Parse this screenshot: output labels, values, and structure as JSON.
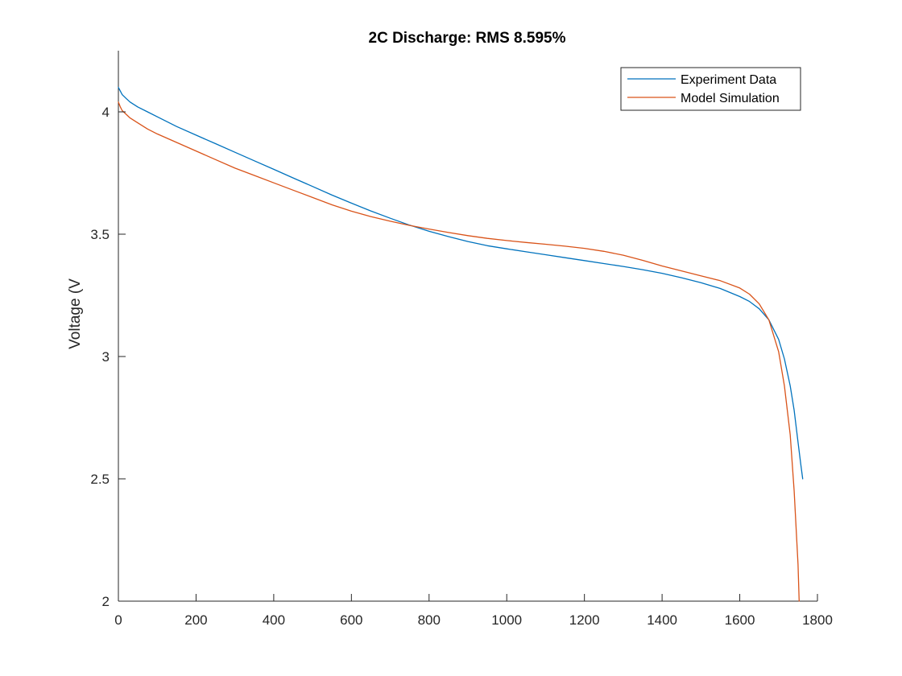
{
  "chart_data": {
    "type": "line",
    "title": "2C Discharge: RMS 8.595%",
    "xlabel": "",
    "ylabel": "Voltage (V",
    "xlim": [
      0,
      1800
    ],
    "ylim": [
      2,
      4.25
    ],
    "x_ticks": [
      0,
      200,
      400,
      600,
      800,
      1000,
      1200,
      1400,
      1600,
      1800
    ],
    "y_ticks": [
      2,
      2.5,
      3,
      3.5,
      4
    ],
    "x_tick_labels": [
      "0",
      "200",
      "400",
      "600",
      "800",
      "1000",
      "1200",
      "1400",
      "1600",
      "1800"
    ],
    "y_tick_labels": [
      "2",
      "2.5",
      "3",
      "3.5",
      "4"
    ],
    "grid": false,
    "legend_position": "top-right",
    "series": [
      {
        "name": "Experiment Data",
        "color": "#0072BD",
        "x": [
          0,
          5,
          10,
          20,
          30,
          50,
          75,
          100,
          150,
          200,
          250,
          300,
          350,
          400,
          450,
          500,
          550,
          600,
          650,
          700,
          750,
          800,
          850,
          900,
          950,
          1000,
          1050,
          1100,
          1150,
          1200,
          1250,
          1300,
          1350,
          1400,
          1450,
          1500,
          1550,
          1600,
          1625,
          1650,
          1675,
          1700,
          1715,
          1730,
          1740,
          1750,
          1757,
          1762
        ],
        "y": [
          4.1,
          4.085,
          4.07,
          4.055,
          4.04,
          4.02,
          4.0,
          3.98,
          3.94,
          3.905,
          3.87,
          3.835,
          3.8,
          3.765,
          3.73,
          3.695,
          3.66,
          3.627,
          3.595,
          3.565,
          3.537,
          3.512,
          3.49,
          3.47,
          3.453,
          3.44,
          3.428,
          3.416,
          3.404,
          3.392,
          3.38,
          3.368,
          3.355,
          3.34,
          3.322,
          3.302,
          3.278,
          3.245,
          3.225,
          3.195,
          3.15,
          3.07,
          2.99,
          2.88,
          2.78,
          2.65,
          2.56,
          2.5
        ]
      },
      {
        "name": "Model Simulation",
        "color": "#D95319",
        "x": [
          0,
          5,
          10,
          20,
          30,
          50,
          75,
          100,
          150,
          200,
          250,
          300,
          350,
          400,
          450,
          500,
          550,
          600,
          650,
          700,
          750,
          800,
          850,
          900,
          950,
          1000,
          1050,
          1100,
          1150,
          1200,
          1250,
          1300,
          1350,
          1400,
          1450,
          1500,
          1550,
          1600,
          1625,
          1650,
          1675,
          1700,
          1715,
          1730,
          1740,
          1745,
          1750,
          1753
        ],
        "y": [
          4.04,
          4.02,
          4.005,
          3.99,
          3.975,
          3.955,
          3.93,
          3.91,
          3.875,
          3.84,
          3.805,
          3.77,
          3.74,
          3.71,
          3.68,
          3.65,
          3.62,
          3.594,
          3.572,
          3.553,
          3.536,
          3.521,
          3.507,
          3.494,
          3.483,
          3.474,
          3.466,
          3.459,
          3.451,
          3.442,
          3.43,
          3.414,
          3.393,
          3.37,
          3.35,
          3.33,
          3.31,
          3.28,
          3.255,
          3.215,
          3.15,
          3.02,
          2.88,
          2.68,
          2.45,
          2.3,
          2.15,
          2.0
        ]
      }
    ]
  }
}
